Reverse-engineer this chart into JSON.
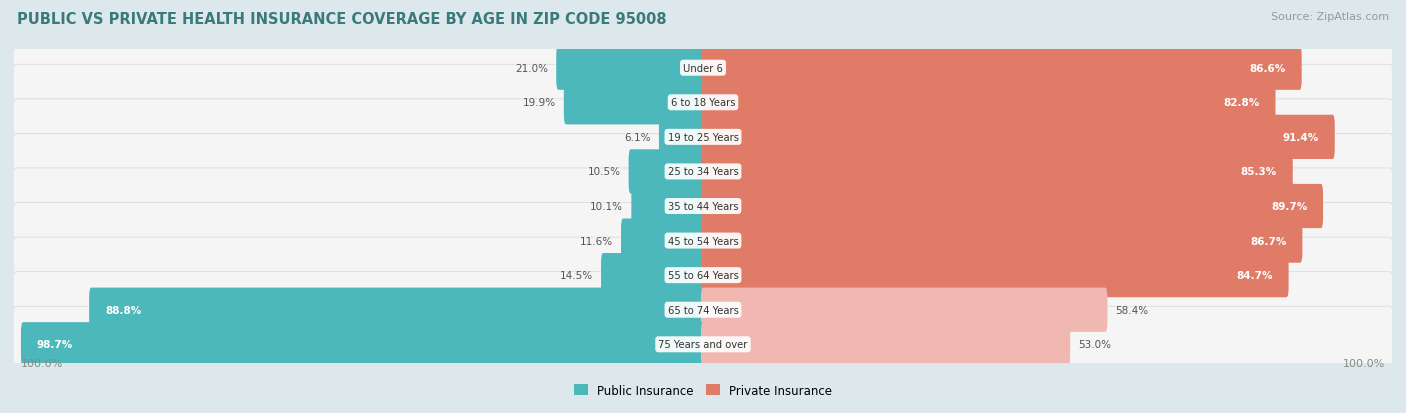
{
  "title": "PUBLIC VS PRIVATE HEALTH INSURANCE COVERAGE BY AGE IN ZIP CODE 95008",
  "source": "Source: ZipAtlas.com",
  "categories": [
    "Under 6",
    "6 to 18 Years",
    "19 to 25 Years",
    "25 to 34 Years",
    "35 to 44 Years",
    "45 to 54 Years",
    "55 to 64 Years",
    "65 to 74 Years",
    "75 Years and over"
  ],
  "public_values": [
    21.0,
    19.9,
    6.1,
    10.5,
    10.1,
    11.6,
    14.5,
    88.8,
    98.7
  ],
  "private_values": [
    86.6,
    82.8,
    91.4,
    85.3,
    89.7,
    86.7,
    84.7,
    58.4,
    53.0
  ],
  "public_color": "#4db8bc",
  "private_color_strong": "#e07b68",
  "private_color_light": "#f0b8b0",
  "bg_color": "#dce8ec",
  "row_bg_color": "#f5f5f5",
  "row_border_color": "#d0d8dc",
  "title_color": "#3a7a7a",
  "source_color": "#999999",
  "outside_label_color": "#555555",
  "inside_label_color": "#ffffff",
  "axis_label_color": "#888888",
  "legend_labels": [
    "Public Insurance",
    "Private Insurance"
  ],
  "private_strong_threshold": 70.0,
  "public_inside_threshold": 50.0
}
